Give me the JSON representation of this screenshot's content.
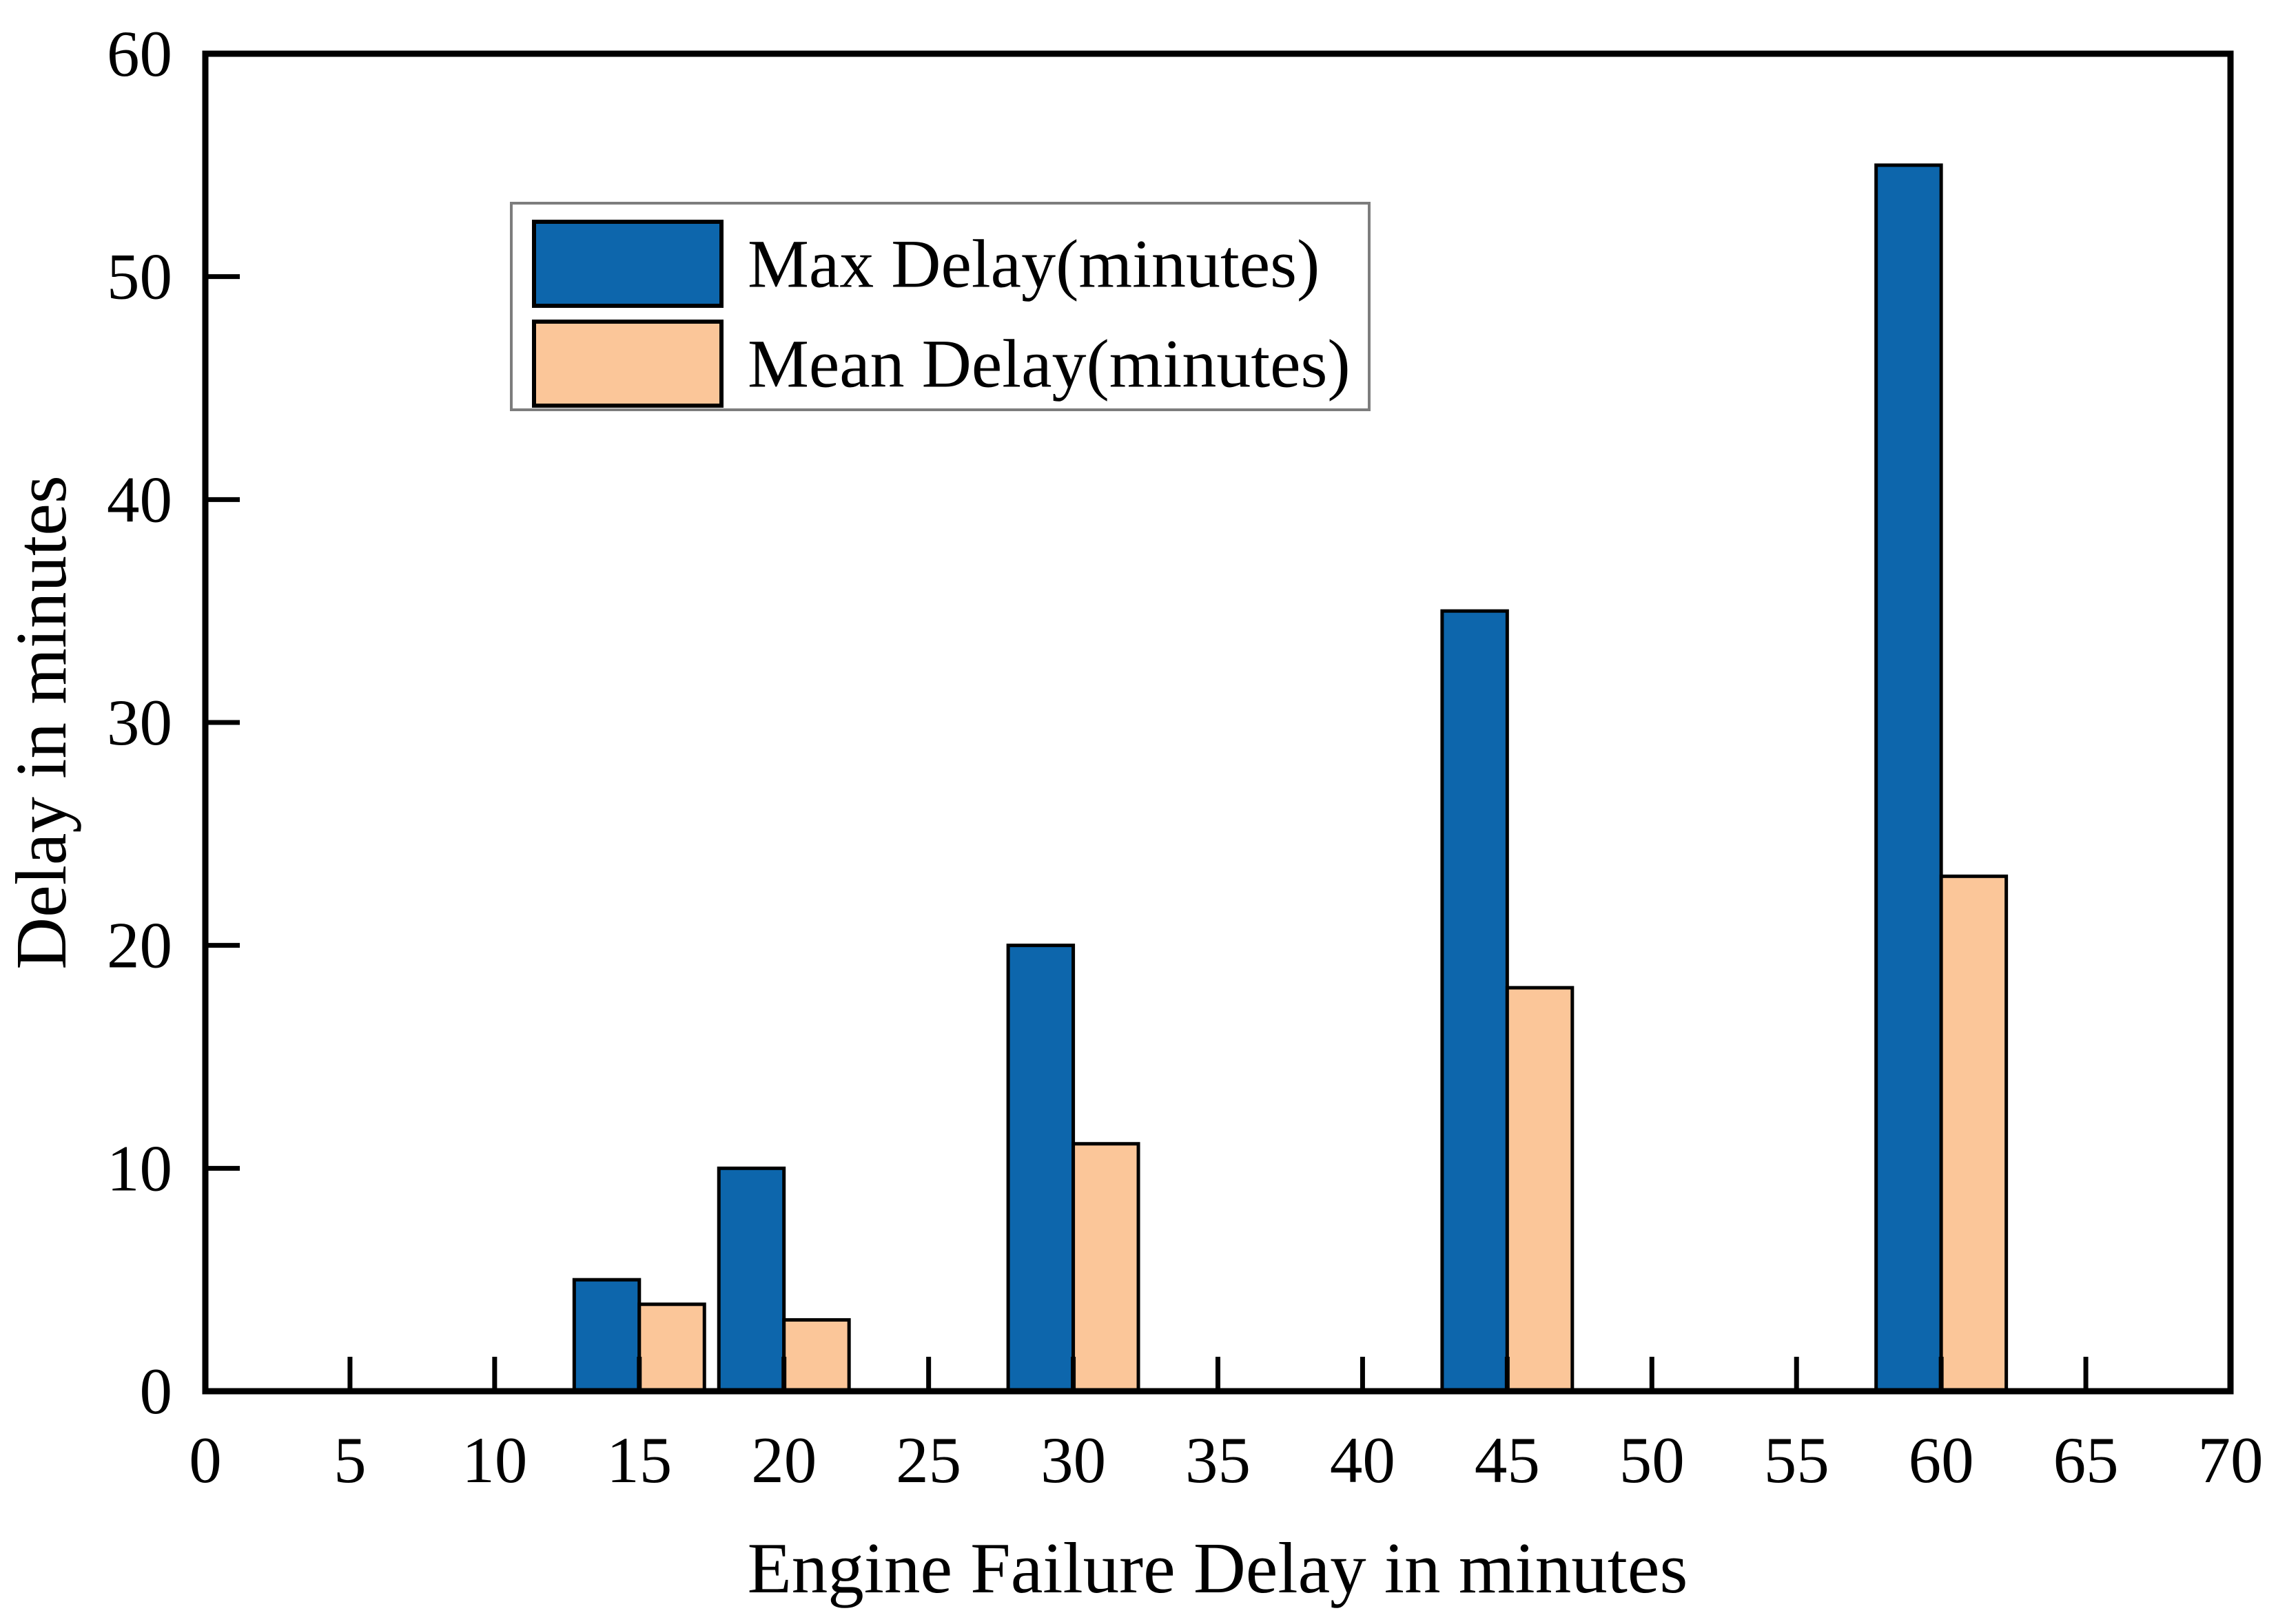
{
  "figure": {
    "background": "#ffffff",
    "axis_color": "#000000",
    "text_color": "#000000"
  },
  "chart_data": {
    "type": "bar",
    "title": "",
    "xlabel": "Engine Failure Delay in minutes",
    "ylabel": "Delay in minutes",
    "x": [
      15,
      20,
      30,
      45,
      60
    ],
    "series": [
      {
        "name": "Max Delay(minutes)",
        "color": "#0d66ac",
        "outline": "#000000",
        "values": [
          5,
          10,
          20,
          35,
          55
        ]
      },
      {
        "name": "Mean Delay(minutes)",
        "color": "#fbc699",
        "outline": "#000000",
        "values": [
          3.9,
          3.2,
          11.1,
          18.1,
          23.1
        ]
      }
    ],
    "bar_width_units": 2.25,
    "xlim": [
      0,
      70
    ],
    "ylim": [
      0,
      60
    ],
    "x_ticks": [
      0,
      5,
      10,
      15,
      20,
      25,
      30,
      35,
      40,
      45,
      50,
      55,
      60,
      65,
      70
    ],
    "y_ticks": [
      0,
      10,
      20,
      30,
      40,
      50,
      60
    ],
    "grid": false,
    "legend": {
      "position": "upper-left-inside",
      "entries": [
        "Max Delay(minutes)",
        "Mean Delay(minutes)"
      ],
      "border_color": "#7d7d7d",
      "background": "#ffffff"
    }
  }
}
